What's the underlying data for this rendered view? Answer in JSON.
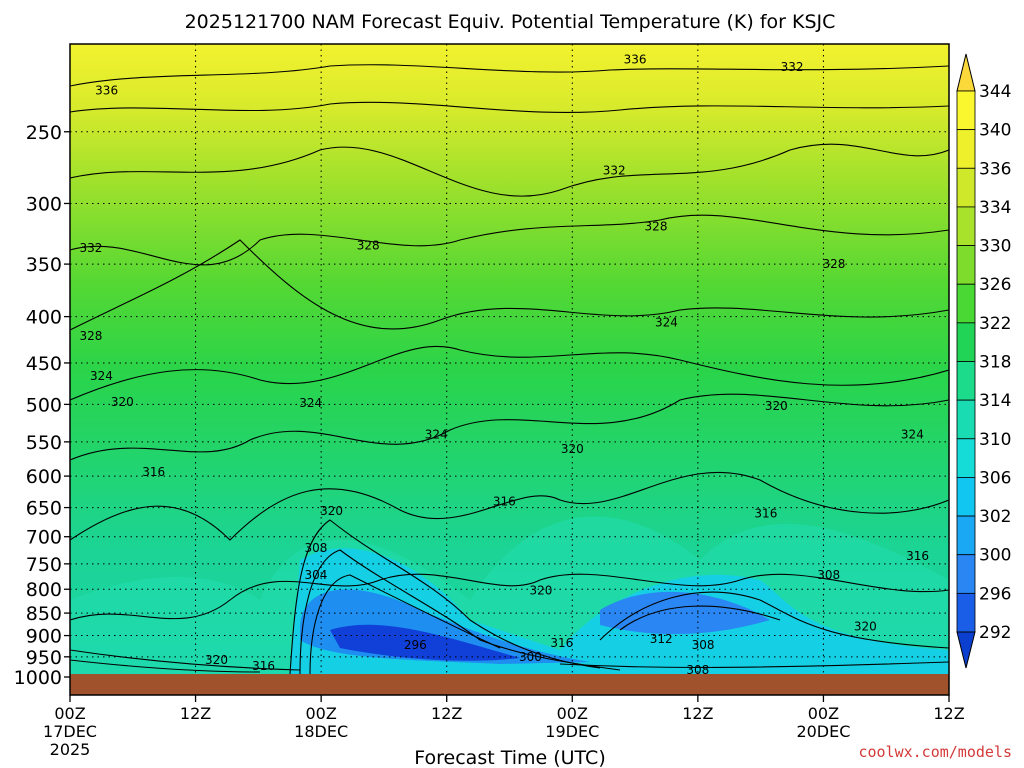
{
  "chart_data": {
    "type": "heatmap",
    "title": "2025121700 NAM Forecast Equiv. Potential Temperature (K) for KSJC",
    "xlabel": "Forecast Time (UTC)",
    "ylabel": "",
    "credit": "coolwx.com/models",
    "y_axis": {
      "scale": "pressure",
      "range": [
        1000,
        200
      ],
      "ticks": [
        "250",
        "300",
        "350",
        "400",
        "450",
        "500",
        "550",
        "600",
        "650",
        "700",
        "750",
        "800",
        "850",
        "900",
        "950",
        "1000"
      ]
    },
    "x_axis": {
      "range_hours": [
        0,
        84
      ],
      "ticks": [
        {
          "hour": 0,
          "line1": "00Z",
          "line2": "17DEC",
          "line3": "2025"
        },
        {
          "hour": 12,
          "line1": "12Z",
          "line2": "",
          "line3": ""
        },
        {
          "hour": 24,
          "line1": "00Z",
          "line2": "18DEC",
          "line3": ""
        },
        {
          "hour": 36,
          "line1": "12Z",
          "line2": "",
          "line3": ""
        },
        {
          "hour": 48,
          "line1": "00Z",
          "line2": "19DEC",
          "line3": ""
        },
        {
          "hour": 60,
          "line1": "12Z",
          "line2": "",
          "line3": ""
        },
        {
          "hour": 72,
          "line1": "00Z",
          "line2": "20DEC",
          "line3": ""
        },
        {
          "hour": 84,
          "line1": "12Z",
          "line2": "",
          "line3": ""
        }
      ]
    },
    "grid": true,
    "colorbar": {
      "values": [
        "292",
        "296",
        "300",
        "302",
        "306",
        "310",
        "314",
        "318",
        "322",
        "326",
        "330",
        "334",
        "336",
        "340",
        "344"
      ],
      "colors": [
        "#0a3fcf",
        "#1a5ee8",
        "#2a86f2",
        "#1aa7f4",
        "#12c6f2",
        "#16dcd8",
        "#19dcb2",
        "#1cdb8a",
        "#22d455",
        "#4ad834",
        "#7ddc2c",
        "#a9e22a",
        "#cfe92a",
        "#eef02c",
        "#fbf72e",
        "#fcd93a"
      ]
    },
    "contour_labels": [
      {
        "text": "336",
        "hour": 3.5,
        "p": 225
      },
      {
        "text": "336",
        "hour": 54,
        "p": 208
      },
      {
        "text": "332",
        "hour": 69,
        "p": 212
      },
      {
        "text": "332",
        "hour": 52,
        "p": 276
      },
      {
        "text": "332",
        "hour": 2,
        "p": 336
      },
      {
        "text": "328",
        "hour": 28.5,
        "p": 334
      },
      {
        "text": "328",
        "hour": 56,
        "p": 318
      },
      {
        "text": "328",
        "hour": 73,
        "p": 350
      },
      {
        "text": "328",
        "hour": 2,
        "p": 420
      },
      {
        "text": "324",
        "hour": 3,
        "p": 465
      },
      {
        "text": "324",
        "hour": 23,
        "p": 498
      },
      {
        "text": "324",
        "hour": 35,
        "p": 540
      },
      {
        "text": "324",
        "hour": 57,
        "p": 406
      },
      {
        "text": "324",
        "hour": 80.5,
        "p": 540
      },
      {
        "text": "320",
        "hour": 5,
        "p": 497
      },
      {
        "text": "320",
        "hour": 48,
        "p": 560
      },
      {
        "text": "320",
        "hour": 67.5,
        "p": 502
      },
      {
        "text": "320",
        "hour": 25,
        "p": 656
      },
      {
        "text": "320",
        "hour": 45,
        "p": 803
      },
      {
        "text": "320",
        "hour": 14,
        "p": 958
      },
      {
        "text": "320",
        "hour": 76,
        "p": 880
      },
      {
        "text": "316",
        "hour": 8,
        "p": 594
      },
      {
        "text": "316",
        "hour": 41.5,
        "p": 640
      },
      {
        "text": "316",
        "hour": 66.5,
        "p": 660
      },
      {
        "text": "316",
        "hour": 81,
        "p": 735
      },
      {
        "text": "316",
        "hour": 47,
        "p": 917
      },
      {
        "text": "316",
        "hour": 18.5,
        "p": 973
      },
      {
        "text": "308",
        "hour": 23.5,
        "p": 720
      },
      {
        "text": "308",
        "hour": 72.5,
        "p": 772
      },
      {
        "text": "308",
        "hour": 60.5,
        "p": 922
      },
      {
        "text": "308",
        "hour": 60,
        "p": 982
      },
      {
        "text": "304",
        "hour": 23.5,
        "p": 772
      },
      {
        "text": "312",
        "hour": 56.5,
        "p": 908
      },
      {
        "text": "296",
        "hour": 33,
        "p": 922
      },
      {
        "text": "300",
        "hour": 44,
        "p": 950
      }
    ]
  }
}
